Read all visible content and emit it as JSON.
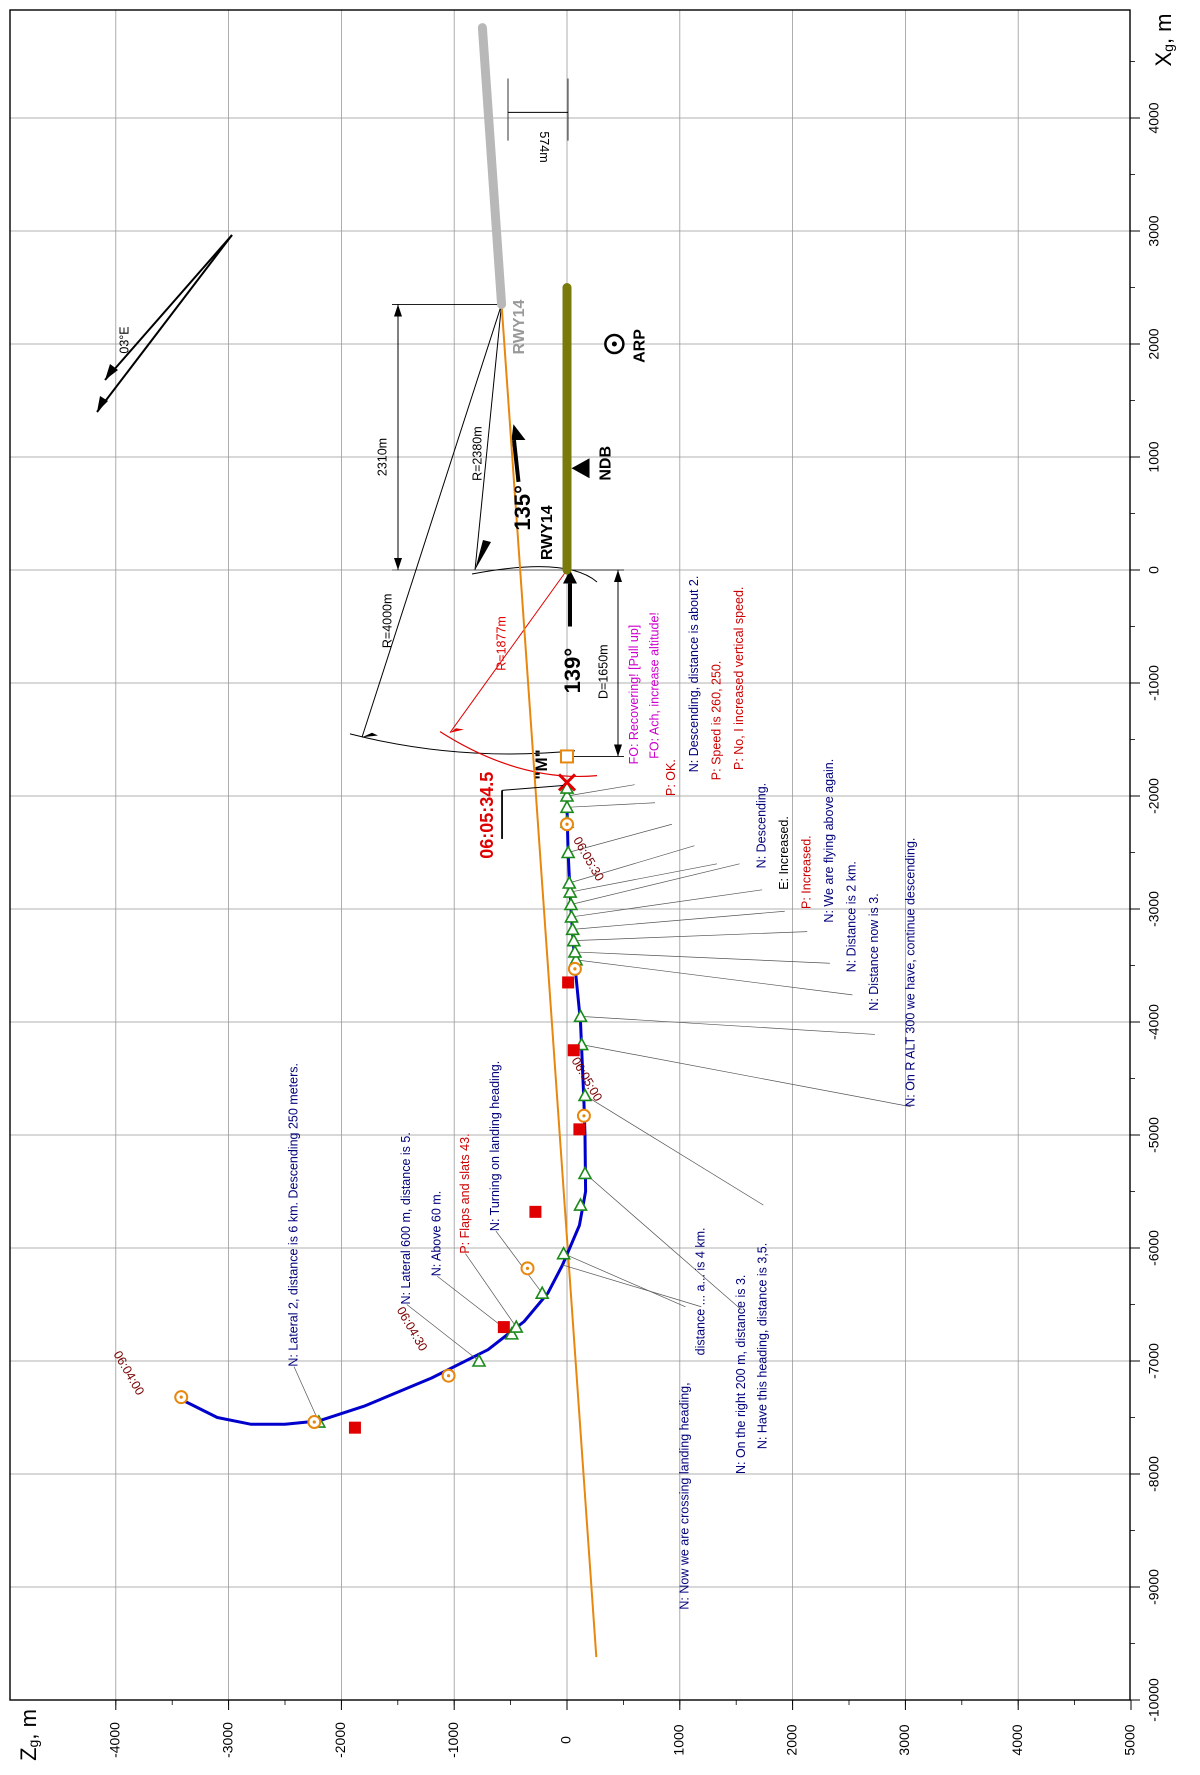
{
  "chart_data": {
    "type": "line",
    "x_axis_label": "X",
    "x_axis_sub": "g",
    "x_axis_unit": ", m",
    "z_axis_label": "Z",
    "z_axis_sub": "g",
    "z_axis_unit": ", m",
    "x_ticks": [
      "-10000",
      "-9000",
      "-8000",
      "-7000",
      "-6000",
      "-5000",
      "-4000",
      "-3000",
      "-2000",
      "-1000",
      "0",
      "1000",
      "2000",
      "3000",
      "4000"
    ],
    "z_ticks": [
      "-4000",
      "-3000",
      "-2000",
      "-1000",
      "0",
      "1000",
      "2000",
      "3000",
      "4000",
      "5000"
    ],
    "x_range": [
      -10000,
      5000
    ],
    "z_range": [
      -4000,
      5000
    ],
    "grid": true,
    "flight_path": {
      "color": "#0000cc",
      "points": [
        [
          -7350,
          -3400
        ],
        [
          -7500,
          -3100
        ],
        [
          -7560,
          -2800
        ],
        [
          -7560,
          -2500
        ],
        [
          -7530,
          -2200
        ],
        [
          -7400,
          -1800
        ],
        [
          -7150,
          -1200
        ],
        [
          -6900,
          -700
        ],
        [
          -6650,
          -380
        ],
        [
          -6400,
          -170
        ],
        [
          -6150,
          -40
        ],
        [
          -5800,
          110
        ],
        [
          -5500,
          165
        ],
        [
          -5000,
          160
        ],
        [
          -4700,
          150
        ],
        [
          -4000,
          120
        ],
        [
          -3500,
          70
        ],
        [
          -3000,
          35
        ],
        [
          -2500,
          10
        ],
        [
          -2100,
          0
        ],
        [
          -1880,
          0
        ]
      ]
    },
    "extended_centerline": {
      "color": "#e8870e",
      "points": [
        [
          -9620,
          260
        ],
        [
          2350,
          -580
        ]
      ]
    },
    "old_runway": {
      "color": "#b8b8b8",
      "points": [
        [
          2350,
          -580
        ],
        [
          4800,
          -750
        ]
      ]
    },
    "new_runway": {
      "color": "#7a7a0a",
      "points": [
        [
          0,
          0
        ],
        [
          2500,
          0
        ]
      ]
    },
    "arp": {
      "x": 2000,
      "z": 420,
      "label": "ARP"
    },
    "ndb": {
      "x": 900,
      "z": 120,
      "label": "NDB"
    },
    "crash_point": {
      "x": -1880,
      "z": 0
    },
    "m_marker": {
      "x": -1650,
      "z": 0,
      "label": "\"M\""
    },
    "circles": [
      [
        -7320,
        -3420
      ],
      [
        -7540,
        -2240
      ],
      [
        -7130,
        -1050
      ],
      [
        -6180,
        -350
      ],
      [
        -4830,
        150
      ],
      [
        -3530,
        70
      ],
      [
        -2250,
        0
      ]
    ],
    "squares": [
      [
        -7590,
        -1880
      ],
      [
        -6700,
        -560
      ],
      [
        -5680,
        -280
      ],
      [
        -4950,
        110
      ],
      [
        -4250,
        60
      ],
      [
        -3650,
        10
      ]
    ],
    "triangles": [
      [
        -7540,
        -2200
      ],
      [
        -7000,
        -780
      ],
      [
        -6760,
        -490
      ],
      [
        -6700,
        -450
      ],
      [
        -6400,
        -220
      ],
      [
        -6050,
        -30
      ],
      [
        -5620,
        120
      ],
      [
        -5340,
        160
      ],
      [
        -4650,
        160
      ],
      [
        -4200,
        130
      ],
      [
        -3950,
        120
      ],
      [
        -3450,
        80
      ],
      [
        -3380,
        70
      ],
      [
        -3280,
        60
      ],
      [
        -3180,
        50
      ],
      [
        -3070,
        40
      ],
      [
        -2960,
        35
      ],
      [
        -2850,
        28
      ],
      [
        -2770,
        20
      ],
      [
        -2500,
        10
      ],
      [
        -2230,
        0
      ],
      [
        -2100,
        0
      ],
      [
        -2000,
        0
      ],
      [
        -1930,
        0
      ]
    ],
    "time_labels": [
      {
        "text": "06:04:00",
        "x": -7110,
        "z": -3890
      },
      {
        "text": "06:04:30",
        "x": -6720,
        "z": -1380
      },
      {
        "text": "06:05:00",
        "x": -4510,
        "z": 170
      },
      {
        "text": "06:05:30",
        "x": -2560,
        "z": 185
      }
    ],
    "crash_time": "06:05:34.5",
    "labels": {
      "rwy14_new": "RWY14",
      "rwy14_old": "RWY14",
      "hdg_new": "139°",
      "hdg_old": "135°",
      "r1877": "R=1877m",
      "r4000": "R=4000m",
      "r2380": "R=2380m",
      "d2310": "2310m",
      "d574": "574m",
      "d1650": "D=1650m",
      "mag_var": "03°E"
    },
    "annotations": [
      {
        "text": "N: Lateral 2, distance is 6 km. Descending 250 meters.",
        "color": "#00007a",
        "x": -7050,
        "z": -2420
      },
      {
        "text": "N: Lateral 600 m, distance is 5.",
        "color": "#00007a",
        "x": -6500,
        "z": -1420
      },
      {
        "text": "N: Above 60 m.",
        "color": "#00007a",
        "x": -6250,
        "z": -1150
      },
      {
        "text": "P: Flaps and slats 43.",
        "color": "#cc0000",
        "x": -6050,
        "z": -900
      },
      {
        "text": "N: Turning on landing heading.",
        "color": "#00007a",
        "x": -5850,
        "z": -630
      },
      {
        "text": "N: Now we are crossing landing heading,",
        "color": "#00007a",
        "x": -9200,
        "z": 1050
      },
      {
        "text": "distance ... a... is 4 km.",
        "color": "#00007a",
        "x": -6950,
        "z": 1190
      },
      {
        "text": "N: On the right 200 m, distance is 3.",
        "color": "#00007a",
        "x": -8000,
        "z": 1550
      },
      {
        "text": "N: Have this heading, distance is 3,5.",
        "color": "#00007a",
        "x": -7780,
        "z": 1740
      },
      {
        "text": "N: On R ALT 300 we have, continue descending.",
        "color": "#00007a",
        "x": -4750,
        "z": 3050
      },
      {
        "text": "N: Distance now is 3.",
        "color": "#00007a",
        "x": -3900,
        "z": 2730
      },
      {
        "text": "N: Distance is 2 km.",
        "color": "#00007a",
        "x": -3560,
        "z": 2530
      },
      {
        "text": "N: We are flying above again.",
        "color": "#00007a",
        "x": -3120,
        "z": 2330
      },
      {
        "text": "P: Increased.",
        "color": "#cc0000",
        "x": -3000,
        "z": 2130
      },
      {
        "text": "E: Increased.",
        "color": "#000000",
        "x": -2830,
        "z": 1930
      },
      {
        "text": "N: Descending.",
        "color": "#00007a",
        "x": -2640,
        "z": 1730
      },
      {
        "text": "P: No, I increased vertical speed.",
        "color": "#cc0000",
        "x": -1770,
        "z": 1530
      },
      {
        "text": "P: Speed is 260, 250.",
        "color": "#cc0000",
        "x": -1860,
        "z": 1330
      },
      {
        "text": "N: Descending, distance is about 2.",
        "color": "#00007a",
        "x": -1790,
        "z": 1130
      },
      {
        "text": "P: OK.",
        "color": "#cc0000",
        "x": -2000,
        "z": 930
      },
      {
        "text": "FO: Ach, increase altitude!",
        "color": "#cc00cc",
        "x": -1670,
        "z": 780
      },
      {
        "text": "FO: Recovering! [Pull up]",
        "color": "#cc00cc",
        "x": -1720,
        "z": 600
      }
    ]
  }
}
